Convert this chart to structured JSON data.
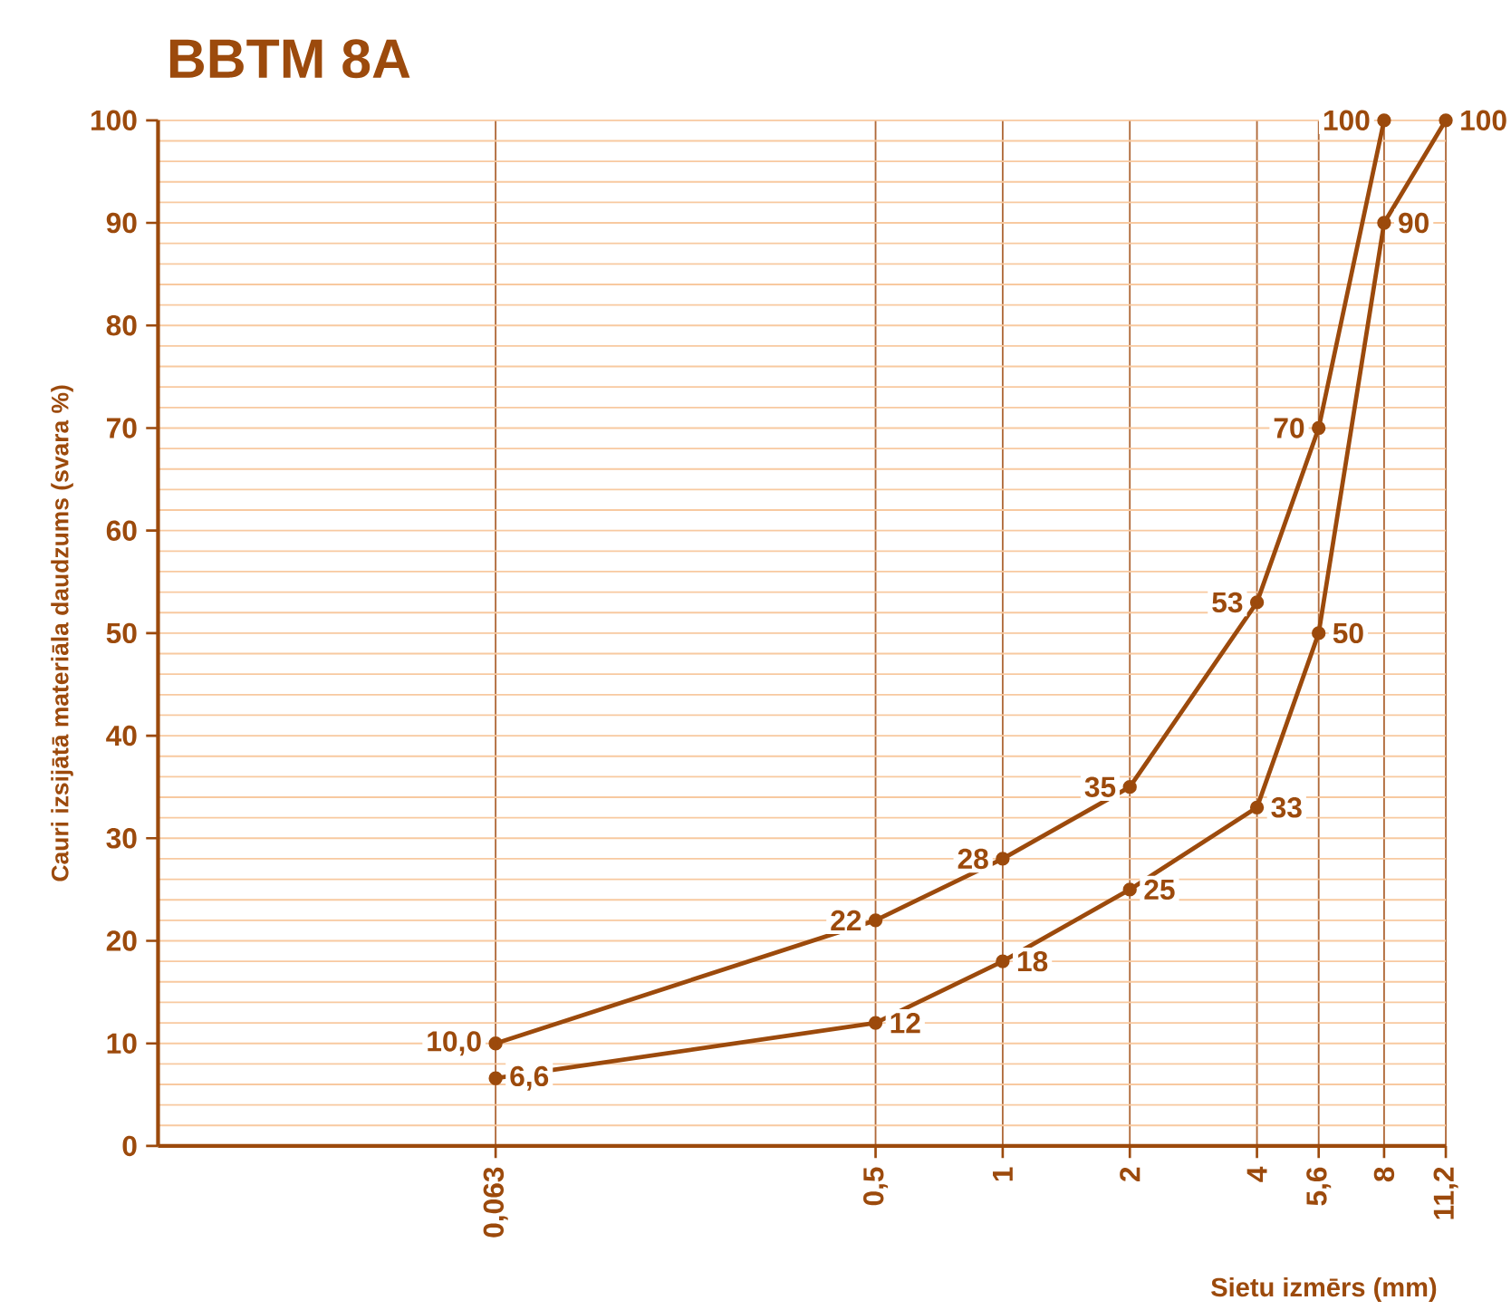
{
  "chart_data": {
    "type": "line",
    "title": "BBTM 8A",
    "xlabel": "Sietu izmērs (mm)",
    "ylabel": "Cauri izsijātā materiāla daudzums (svara %)",
    "log": "x",
    "xlim": [
      0.01,
      11.2
    ],
    "ylim": [
      0,
      100
    ],
    "xticks": [
      {
        "value": 0.063,
        "label": "0,063"
      },
      {
        "value": 0.5,
        "label": "0,5"
      },
      1,
      2,
      4,
      {
        "value": 5.6,
        "label": "5,6"
      },
      8,
      {
        "value": 11.2,
        "label": "11,2"
      }
    ],
    "yticks": [
      0,
      10,
      20,
      30,
      40,
      50,
      60,
      70,
      80,
      90,
      100
    ],
    "grid": true,
    "marker": "circle",
    "line_style": "solid",
    "series": [
      {
        "color": "#9c4a0c",
        "x": [
          0.063,
          0.5,
          1,
          2,
          4,
          5.6,
          8
        ],
        "values": [
          10.0,
          22,
          28,
          35,
          53,
          70,
          100
        ],
        "value_labels": [
          "10,0",
          "22",
          "28",
          "35",
          "53",
          "70",
          "100"
        ]
      },
      {
        "color": "#9c4a0c",
        "x": [
          0.063,
          0.5,
          1,
          2,
          4,
          5.6,
          8,
          11.2
        ],
        "values": [
          6.6,
          12,
          18,
          25,
          33,
          50,
          90,
          100
        ],
        "value_labels": [
          "6,6",
          "12",
          "18",
          "25",
          "33",
          "50",
          "90",
          "100"
        ]
      }
    ]
  }
}
